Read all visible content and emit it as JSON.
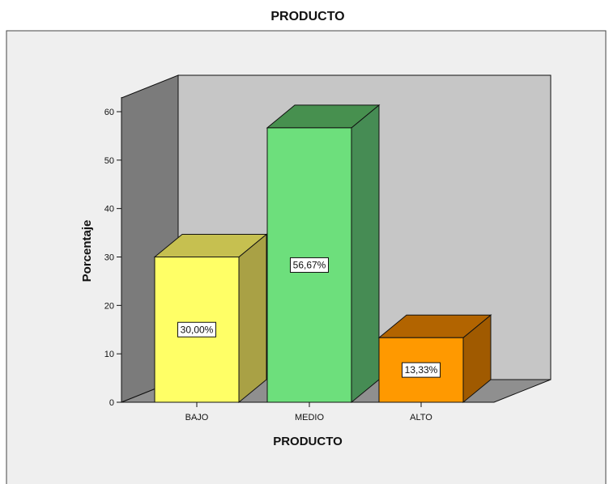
{
  "colors": {
    "frame_bg": "#efefef",
    "wall_back": "#c6c6c6",
    "wall_left": "#7b7b7b",
    "floor": "#8f8f8f",
    "bars": [
      {
        "front": "#ffff66",
        "top": "#c6c050",
        "side": "#a9a145"
      },
      {
        "front": "#6ddf7c",
        "top": "#47904f",
        "side": "#468c54"
      },
      {
        "front": "#ff9900",
        "top": "#b26400",
        "side": "#a05a00"
      }
    ]
  },
  "chart_data": {
    "type": "bar",
    "title": "PRODUCTO",
    "xlabel": "PRODUCTO",
    "ylabel": "Porcentaje",
    "categories": [
      "BAJO",
      "MEDIO",
      "ALTO"
    ],
    "values": [
      30.0,
      56.67,
      13.33
    ],
    "data_labels": [
      "30,00%",
      "56,67%",
      "13,33%"
    ],
    "yticks": [
      "0",
      "10",
      "20",
      "30",
      "40",
      "50",
      "60"
    ],
    "ylim": [
      0,
      60
    ],
    "grid": false,
    "legend": "none"
  }
}
